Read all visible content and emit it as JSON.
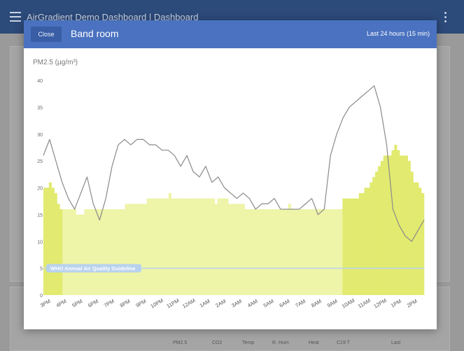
{
  "app": {
    "title": "AirGradient Demo Dashboard | Dashboard"
  },
  "background_table": {
    "columns": [
      "PM2.5",
      "CO2",
      "Temp",
      "R. Hum",
      "Heat",
      "C19 T",
      "Last"
    ]
  },
  "modal": {
    "close_label": "Close",
    "title": "Band room",
    "range": "Last 24 hours (15 min)"
  },
  "colors": {
    "header": "#4a72c0",
    "bar_high": "#e2ea70",
    "bar_low": "#eef4a8",
    "guideline": "#b8d2ee",
    "line": "#8a8a8a"
  },
  "chart_data": {
    "type": "bar",
    "ylabel": "PM2.5 (µg/m³)",
    "ylim": [
      0,
      40
    ],
    "yticks": [
      0,
      5,
      10,
      15,
      20,
      25,
      30,
      35,
      40
    ],
    "xticks": [
      "3PM",
      "4PM",
      "5PM",
      "6PM",
      "7PM",
      "8PM",
      "9PM",
      "10PM",
      "11PM",
      "12AM",
      "1AM",
      "2AM",
      "3AM",
      "4AM",
      "5AM",
      "6AM",
      "7AM",
      "8AM",
      "9AM",
      "10AM",
      "11AM",
      "12PM",
      "1PM",
      "2PM"
    ],
    "annotation": {
      "label": "WHO Annual Air Quality Guideline",
      "value": 5
    },
    "series": [
      {
        "values": [
          20,
          20,
          21,
          20,
          19,
          17,
          16,
          16,
          16,
          16,
          16,
          16,
          15,
          15,
          15,
          16,
          16,
          16,
          16,
          16,
          16,
          16,
          16,
          16,
          16,
          16,
          16,
          16,
          16,
          16,
          17,
          17,
          17,
          17,
          17,
          17,
          17,
          17,
          18,
          18,
          18,
          18,
          18,
          18,
          18,
          18,
          19,
          18,
          18,
          18,
          18,
          18,
          18,
          18,
          18,
          18,
          18,
          18,
          18,
          18,
          18,
          18,
          18,
          17,
          18,
          18,
          18,
          18,
          17,
          17,
          17,
          17,
          17,
          17,
          16,
          16,
          16,
          16,
          16,
          16,
          16,
          16,
          16,
          16,
          16,
          16,
          16,
          16,
          16,
          16,
          17,
          16,
          16,
          16,
          16,
          16,
          16,
          16,
          16,
          16,
          16,
          16,
          16,
          16,
          16,
          16,
          16,
          16,
          16,
          16,
          18,
          18,
          18,
          18,
          18,
          18,
          19,
          19,
          20,
          20,
          21,
          22,
          23,
          24,
          25,
          26,
          26,
          26,
          27,
          28,
          27,
          26,
          26,
          26,
          25,
          23,
          21,
          21,
          20,
          19
        ]
      },
      {
        "values": [
          26,
          29,
          25,
          21,
          18,
          16,
          19,
          22,
          17,
          14,
          18,
          24,
          28,
          29,
          28,
          29,
          29,
          28,
          28,
          27,
          27,
          26,
          24,
          26,
          23,
          22,
          24,
          21,
          22,
          20,
          19,
          18,
          19,
          18,
          16,
          17,
          17,
          18,
          16,
          16,
          16,
          16,
          17,
          18,
          15,
          16,
          26,
          30,
          33,
          35,
          36,
          37,
          38,
          39,
          35,
          28,
          16,
          13,
          11,
          10,
          12,
          14
        ]
      }
    ]
  }
}
